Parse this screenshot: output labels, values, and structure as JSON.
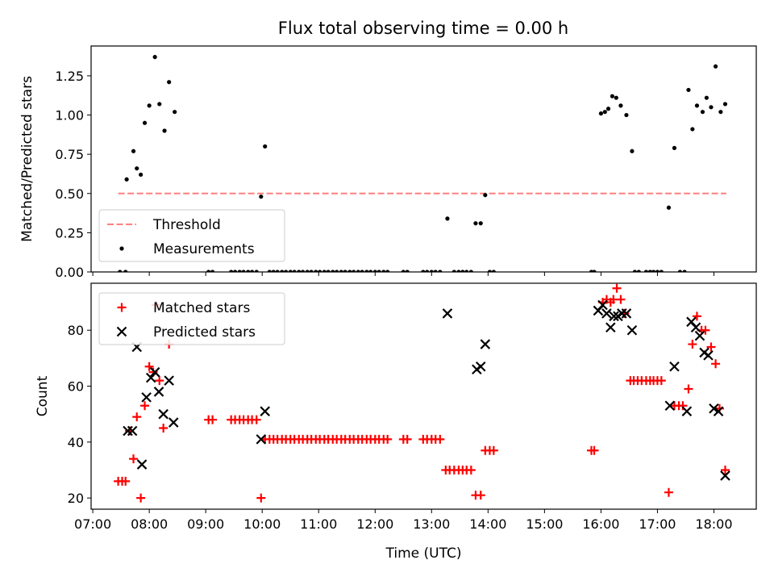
{
  "title": "Flux total observing time = 0.00 h",
  "chart_data": [
    {
      "type": "scatter",
      "panel": "top",
      "xlabel": "",
      "ylabel": "Matched/Predicted stars",
      "x_unit": "Time (UTC), decimal hours",
      "xlim": [
        6.97,
        18.75
      ],
      "ylim": [
        0.0,
        1.44
      ],
      "yticks": [
        0.0,
        0.25,
        0.5,
        0.75,
        1.0,
        1.25
      ],
      "ytick_labels": [
        "0.00",
        "0.25",
        "0.50",
        "0.75",
        "1.00",
        "1.25"
      ],
      "legend_position": "lower-left",
      "series": [
        {
          "name": "Threshold",
          "style": "dashed-line",
          "color": "#ff7f7f",
          "x": [
            7.45,
            18.22
          ],
          "y": [
            0.5,
            0.5
          ]
        },
        {
          "name": "Measurements",
          "style": "dot",
          "color": "#000000",
          "x": [
            7.6,
            7.72,
            7.78,
            7.85,
            7.92,
            8.0,
            8.1,
            8.18,
            8.27,
            8.35,
            8.45,
            9.98,
            10.05,
            13.28,
            13.78,
            13.87,
            13.95,
            16.0,
            16.07,
            16.13,
            16.2,
            16.27,
            16.35,
            16.45,
            16.55,
            17.2,
            17.3,
            17.55,
            17.62,
            17.7,
            17.8,
            17.87,
            17.95,
            18.03,
            18.12,
            18.2,
            7.48,
            7.58,
            9.05,
            9.12,
            9.45,
            9.52,
            9.6,
            9.67,
            9.75,
            9.82,
            9.9,
            10.13,
            10.2,
            10.27,
            10.35,
            10.42,
            10.5,
            10.57,
            10.65,
            10.72,
            10.8,
            10.87,
            10.95,
            11.02,
            11.1,
            11.17,
            11.25,
            11.32,
            11.4,
            11.47,
            11.55,
            11.62,
            11.7,
            11.77,
            11.85,
            11.92,
            12.0,
            12.07,
            12.15,
            12.22,
            12.5,
            12.57,
            12.85,
            12.92,
            13.0,
            13.07,
            13.15,
            13.4,
            13.48,
            13.55,
            13.62,
            13.7,
            14.03,
            14.1,
            15.83,
            15.88,
            16.6,
            16.67,
            16.8,
            16.87,
            16.93,
            17.0,
            17.07,
            17.4,
            17.48
          ],
          "y": [
            0.59,
            0.77,
            0.66,
            0.62,
            0.95,
            1.06,
            1.37,
            1.07,
            0.9,
            1.21,
            1.02,
            0.48,
            0.8,
            0.34,
            0.31,
            0.31,
            0.49,
            1.01,
            1.02,
            1.04,
            1.12,
            1.11,
            1.06,
            1.0,
            0.77,
            0.41,
            0.79,
            1.16,
            0.91,
            1.06,
            1.02,
            1.11,
            1.05,
            1.31,
            1.02,
            1.07,
            0,
            0,
            0,
            0,
            0,
            0,
            0,
            0,
            0,
            0,
            0,
            0,
            0,
            0,
            0,
            0,
            0,
            0,
            0,
            0,
            0,
            0,
            0,
            0,
            0,
            0,
            0,
            0,
            0,
            0,
            0,
            0,
            0,
            0,
            0,
            0,
            0,
            0,
            0,
            0,
            0,
            0,
            0,
            0,
            0,
            0,
            0,
            0,
            0,
            0,
            0,
            0,
            0,
            0,
            0,
            0,
            0,
            0,
            0,
            0,
            0,
            0,
            0,
            0,
            0
          ]
        }
      ]
    },
    {
      "type": "scatter",
      "panel": "bottom",
      "xlabel": "Time (UTC)",
      "ylabel": "Count",
      "x_unit": "Time (UTC), decimal hours",
      "xlim": [
        6.97,
        18.75
      ],
      "ylim": [
        16.0,
        96.8
      ],
      "yticks": [
        20,
        40,
        60,
        80
      ],
      "ytick_labels": [
        "20",
        "40",
        "60",
        "80"
      ],
      "xticks": [
        7,
        8,
        9,
        10,
        11,
        12,
        13,
        14,
        15,
        16,
        17,
        18
      ],
      "xtick_labels": [
        "07:00",
        "08:00",
        "09:00",
        "10:00",
        "11:00",
        "12:00",
        "13:00",
        "14:00",
        "15:00",
        "16:00",
        "17:00",
        "18:00"
      ],
      "legend_position": "top-left",
      "series": [
        {
          "name": "Matched stars",
          "marker": "plus",
          "color": "#ff0000",
          "x": [
            7.45,
            7.52,
            7.58,
            7.65,
            7.72,
            7.78,
            7.85,
            7.92,
            8.0,
            8.07,
            8.12,
            8.18,
            8.25,
            8.35,
            9.05,
            9.12,
            9.45,
            9.52,
            9.6,
            9.67,
            9.75,
            9.82,
            9.9,
            9.98,
            10.05,
            10.13,
            10.2,
            10.27,
            10.35,
            10.42,
            10.5,
            10.57,
            10.65,
            10.72,
            10.8,
            10.87,
            10.95,
            11.02,
            11.1,
            11.17,
            11.25,
            11.32,
            11.4,
            11.47,
            11.55,
            11.62,
            11.7,
            11.77,
            11.85,
            11.92,
            12.0,
            12.07,
            12.15,
            12.22,
            12.5,
            12.57,
            12.85,
            12.92,
            13.0,
            13.07,
            13.15,
            13.25,
            13.32,
            13.4,
            13.48,
            13.55,
            13.62,
            13.7,
            13.78,
            13.87,
            13.95,
            14.03,
            14.1,
            15.83,
            15.88,
            16.03,
            16.1,
            16.17,
            16.22,
            16.28,
            16.35,
            16.42,
            16.52,
            16.58,
            16.65,
            16.72,
            16.8,
            16.87,
            16.93,
            17.0,
            17.07,
            17.2,
            17.3,
            17.38,
            17.45,
            17.55,
            17.62,
            17.7,
            17.78,
            17.85,
            17.95,
            18.03,
            18.1,
            18.2
          ],
          "y": [
            26,
            26,
            26,
            44,
            34,
            49,
            20,
            53,
            67,
            65,
            89,
            62,
            45,
            75,
            48,
            48,
            48,
            48,
            48,
            48,
            48,
            48,
            48,
            20,
            41,
            41,
            41,
            41,
            41,
            41,
            41,
            41,
            41,
            41,
            41,
            41,
            41,
            41,
            41,
            41,
            41,
            41,
            41,
            41,
            41,
            41,
            41,
            41,
            41,
            41,
            41,
            41,
            41,
            41,
            41,
            41,
            41,
            41,
            41,
            41,
            41,
            30,
            30,
            30,
            30,
            30,
            30,
            30,
            21,
            21,
            37,
            37,
            37,
            37,
            37,
            90,
            91,
            90,
            91,
            95,
            91,
            86,
            62,
            62,
            62,
            62,
            62,
            62,
            62,
            62,
            62,
            22,
            53,
            53,
            53,
            59,
            75,
            85,
            80,
            80,
            74,
            68,
            52,
            30
          ]
        },
        {
          "name": "Predicted stars",
          "marker": "x",
          "color": "#000000",
          "x": [
            7.62,
            7.7,
            7.78,
            7.87,
            7.95,
            8.03,
            8.1,
            8.17,
            8.25,
            8.35,
            8.43,
            9.98,
            10.05,
            13.28,
            13.8,
            13.87,
            13.95,
            15.95,
            16.03,
            16.1,
            16.17,
            16.23,
            16.3,
            16.37,
            16.45,
            16.55,
            17.22,
            17.3,
            17.52,
            17.6,
            17.68,
            17.75,
            17.83,
            17.9,
            18.0,
            18.08,
            18.2
          ],
          "y": [
            44,
            44,
            74,
            32,
            56,
            63,
            65,
            58,
            50,
            62,
            47,
            41,
            51,
            86,
            66,
            67,
            75,
            87,
            89,
            86,
            81,
            85,
            85,
            86,
            86,
            80,
            53,
            67,
            51,
            83,
            81,
            78,
            72,
            71,
            52,
            51,
            28
          ]
        }
      ]
    }
  ],
  "colors": {
    "measurement_dot": "#000000",
    "threshold_line": "#ff7f7f",
    "matched_marker": "#ff0000",
    "predicted_marker": "#000000"
  }
}
